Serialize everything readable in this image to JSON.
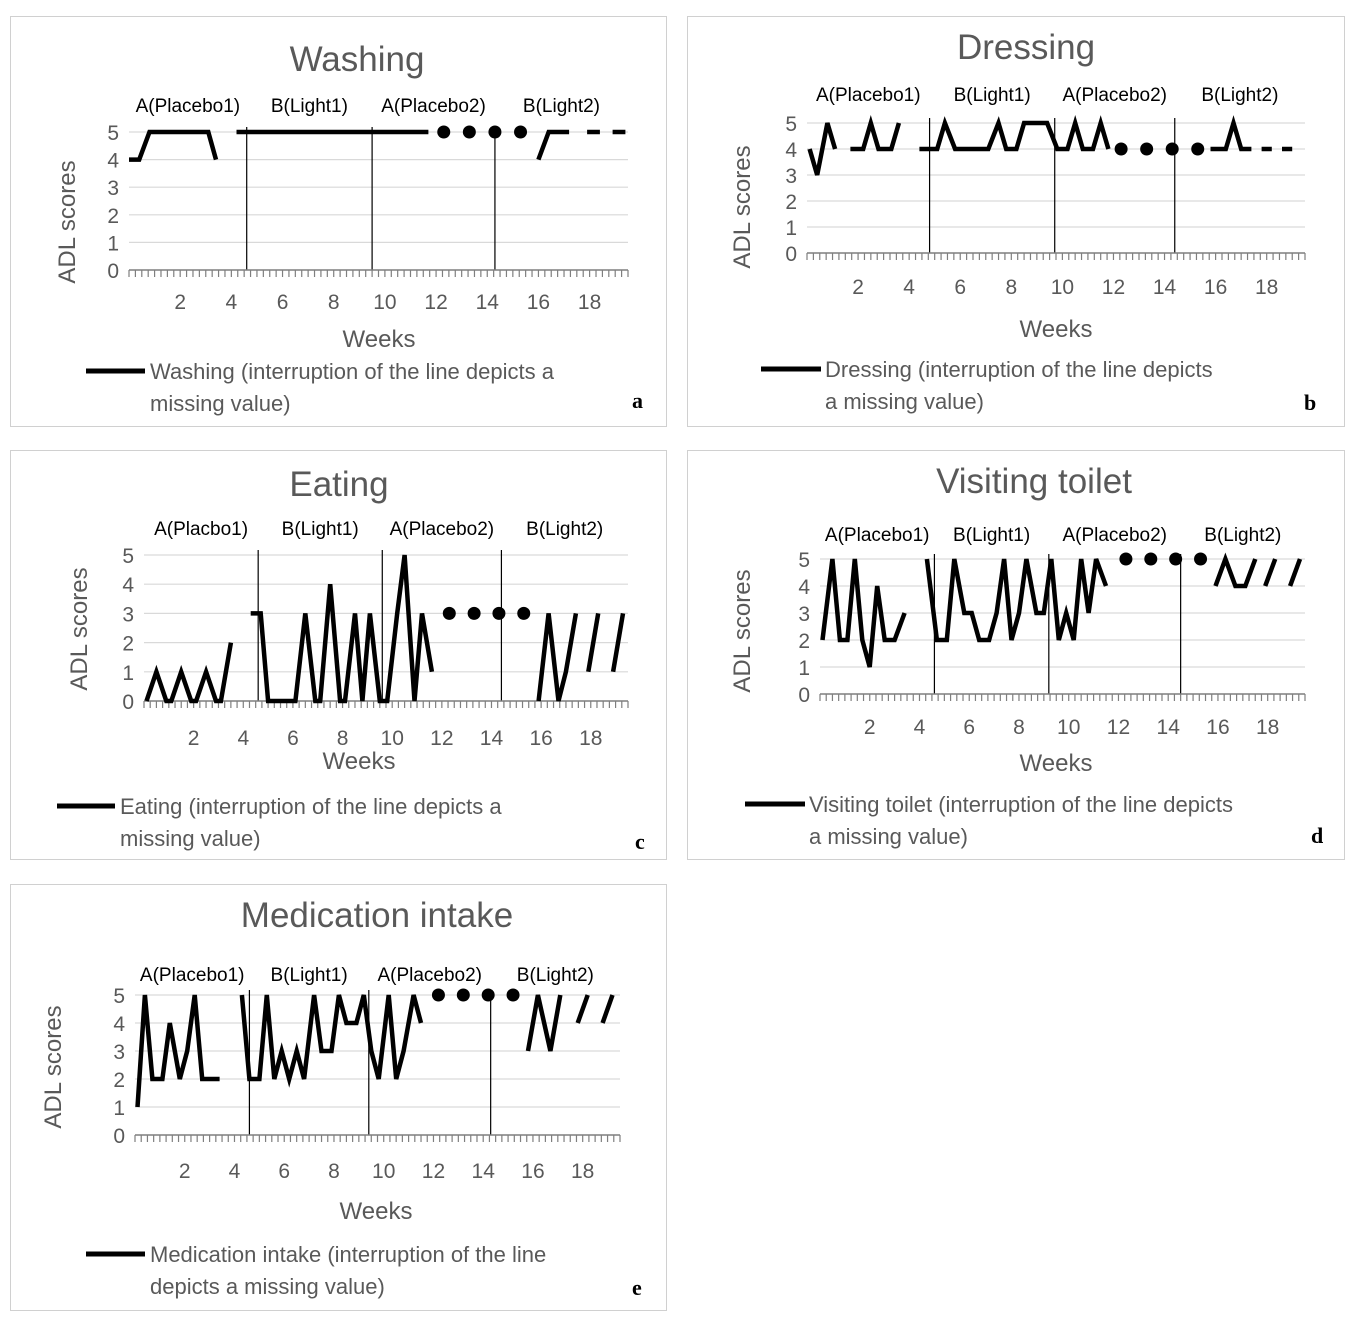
{
  "chart_data": [
    {
      "id": "a",
      "type": "line",
      "title": "Washing",
      "xlabel": "Weeks",
      "ylabel": "ADL scores",
      "xlim": [
        0,
        19.5
      ],
      "ylim": [
        0,
        5
      ],
      "xticks": [
        2,
        4,
        6,
        8,
        10,
        12,
        14,
        16,
        18
      ],
      "yticks": [
        0,
        1,
        2,
        3,
        4,
        5
      ],
      "phases": [
        "A(Placebo1)",
        "B(Light1)",
        "A(Placebo2)",
        "B(Light2)"
      ],
      "phase_boundaries": [
        4.6,
        9.5,
        14.3
      ],
      "series": [
        {
          "name": "Washing",
          "points": [
            [
              0,
              4
            ],
            [
              0.4,
              4
            ],
            [
              0.8,
              5
            ],
            [
              3.1,
              5
            ],
            [
              3.4,
              4
            ]
          ]
        },
        {
          "name": "Washing",
          "points": [
            [
              4.2,
              5
            ],
            [
              11.7,
              5
            ]
          ]
        },
        {
          "name": "Washing",
          "points": [
            [
              16.0,
              4
            ],
            [
              16.4,
              5
            ],
            [
              17.2,
              5
            ]
          ]
        },
        {
          "name": "Washing",
          "points": [
            [
              17.9,
              5
            ],
            [
              18.4,
              5
            ]
          ]
        },
        {
          "name": "Washing",
          "points": [
            [
              18.9,
              5
            ],
            [
              19.4,
              5
            ]
          ]
        }
      ],
      "dots": [
        [
          12.3,
          5
        ],
        [
          13.3,
          5
        ],
        [
          14.3,
          5
        ],
        [
          15.3,
          5
        ]
      ],
      "legend": "Washing (interruption of the line depicts a missing value)",
      "panel_letter": "a"
    },
    {
      "id": "b",
      "type": "line",
      "title": "Dressing",
      "xlabel": "Weeks",
      "ylabel": "ADL scores",
      "xlim": [
        0,
        19.5
      ],
      "ylim": [
        0,
        5
      ],
      "xticks": [
        2,
        4,
        6,
        8,
        10,
        12,
        14,
        16,
        18
      ],
      "yticks": [
        0,
        1,
        2,
        3,
        4,
        5
      ],
      "phases": [
        "A(Placebo1)",
        "B(Light1)",
        "A(Placebo2)",
        "B(Light2)"
      ],
      "phase_boundaries": [
        4.8,
        9.7,
        14.4
      ],
      "series": [
        {
          "name": "Dressing",
          "points": [
            [
              0.1,
              4
            ],
            [
              0.4,
              3
            ],
            [
              0.8,
              5
            ],
            [
              1.1,
              4
            ]
          ]
        },
        {
          "name": "Dressing",
          "points": [
            [
              1.7,
              4
            ],
            [
              2.2,
              4
            ],
            [
              2.5,
              5
            ],
            [
              2.8,
              4
            ],
            [
              3.3,
              4
            ],
            [
              3.6,
              5
            ]
          ]
        },
        {
          "name": "Dressing",
          "points": [
            [
              4.4,
              4
            ],
            [
              5.1,
              4
            ],
            [
              5.4,
              5
            ],
            [
              5.8,
              4
            ],
            [
              7.1,
              4
            ],
            [
              7.5,
              5
            ],
            [
              7.8,
              4
            ],
            [
              8.2,
              4
            ],
            [
              8.5,
              5
            ],
            [
              9.4,
              5
            ],
            [
              9.8,
              4
            ],
            [
              10.2,
              4
            ],
            [
              10.5,
              5
            ],
            [
              10.8,
              4
            ],
            [
              11.2,
              4
            ],
            [
              11.5,
              5
            ],
            [
              11.8,
              4
            ]
          ]
        },
        {
          "name": "Dressing",
          "points": [
            [
              15.8,
              4
            ],
            [
              16.4,
              4
            ],
            [
              16.7,
              5
            ],
            [
              17.0,
              4
            ],
            [
              17.4,
              4
            ]
          ]
        },
        {
          "name": "Dressing",
          "points": [
            [
              17.8,
              4
            ],
            [
              18.2,
              4
            ]
          ]
        },
        {
          "name": "Dressing",
          "points": [
            [
              18.6,
              4
            ],
            [
              19.0,
              4
            ]
          ]
        }
      ],
      "dots": [
        [
          12.3,
          4
        ],
        [
          13.3,
          4
        ],
        [
          14.3,
          4
        ],
        [
          15.3,
          4
        ]
      ],
      "legend": "Dressing (interruption of the line depicts a missing value)",
      "panel_letter": "b"
    },
    {
      "id": "c",
      "type": "line",
      "title": "Eating",
      "xlabel": "Weeks",
      "ylabel": "ADL scores",
      "xlim": [
        0,
        19.5
      ],
      "ylim": [
        0,
        5
      ],
      "xticks": [
        2,
        4,
        6,
        8,
        10,
        12,
        14,
        16,
        18
      ],
      "yticks": [
        0,
        1,
        2,
        3,
        4,
        5
      ],
      "phases": [
        "A(Placbo1)",
        "B(Light1)",
        "A(Placebo2)",
        "B(Light2)"
      ],
      "phase_boundaries": [
        4.6,
        9.6,
        14.4
      ],
      "series": [
        {
          "name": "Eating",
          "points": [
            [
              0.1,
              0
            ],
            [
              0.5,
              1
            ],
            [
              0.9,
              0
            ],
            [
              1.1,
              0
            ],
            [
              1.5,
              1
            ],
            [
              1.9,
              0
            ],
            [
              2.1,
              0
            ],
            [
              2.5,
              1
            ],
            [
              2.9,
              0
            ],
            [
              3.1,
              0
            ],
            [
              3.5,
              2
            ]
          ]
        },
        {
          "name": "Eating",
          "points": [
            [
              4.3,
              3
            ],
            [
              4.7,
              3
            ],
            [
              5.0,
              0
            ],
            [
              6.1,
              0
            ],
            [
              6.5,
              3
            ],
            [
              6.9,
              0
            ],
            [
              7.1,
              0
            ],
            [
              7.5,
              4
            ],
            [
              7.9,
              0
            ],
            [
              8.1,
              0
            ],
            [
              8.5,
              3
            ],
            [
              8.8,
              0
            ],
            [
              9.1,
              3
            ],
            [
              9.5,
              0
            ],
            [
              9.8,
              0
            ],
            [
              10.2,
              3
            ],
            [
              10.5,
              5
            ],
            [
              10.9,
              0
            ],
            [
              11.2,
              3
            ],
            [
              11.6,
              1
            ]
          ]
        },
        {
          "name": "Eating",
          "points": [
            [
              15.9,
              0
            ],
            [
              16.3,
              3
            ],
            [
              16.7,
              0
            ],
            [
              17.0,
              1
            ],
            [
              17.4,
              3
            ]
          ]
        },
        {
          "name": "Eating",
          "points": [
            [
              17.9,
              1
            ],
            [
              18.3,
              3
            ]
          ]
        },
        {
          "name": "Eating",
          "points": [
            [
              18.9,
              1
            ],
            [
              19.3,
              3
            ]
          ]
        }
      ],
      "dots": [
        [
          12.3,
          3
        ],
        [
          13.3,
          3
        ],
        [
          14.3,
          3
        ],
        [
          15.3,
          3
        ]
      ],
      "legend": "Eating (interruption of the line depicts a missing value)",
      "panel_letter": "c"
    },
    {
      "id": "d",
      "type": "line",
      "title": "Visiting toilet",
      "xlabel": "Weeks",
      "ylabel": "ADL scores",
      "xlim": [
        0,
        19.5
      ],
      "ylim": [
        0,
        5
      ],
      "xticks": [
        2,
        4,
        6,
        8,
        10,
        12,
        14,
        16,
        18
      ],
      "yticks": [
        0,
        1,
        2,
        3,
        4,
        5
      ],
      "phases": [
        "A(Placebo1)",
        "B(Light1)",
        "A(Placebo2)",
        "B(Light2)"
      ],
      "phase_boundaries": [
        4.6,
        9.2,
        14.5
      ],
      "series": [
        {
          "name": "Visiting toilet",
          "points": [
            [
              0.1,
              2
            ],
            [
              0.5,
              5
            ],
            [
              0.8,
              2
            ],
            [
              1.1,
              2
            ],
            [
              1.4,
              5
            ],
            [
              1.7,
              2
            ],
            [
              2.0,
              1
            ],
            [
              2.3,
              4
            ],
            [
              2.6,
              2
            ],
            [
              3.0,
              2
            ],
            [
              3.4,
              3
            ]
          ]
        },
        {
          "name": "Visiting toilet",
          "points": [
            [
              4.3,
              5
            ],
            [
              4.7,
              2
            ],
            [
              5.1,
              2
            ],
            [
              5.4,
              5
            ],
            [
              5.8,
              3
            ],
            [
              6.1,
              3
            ],
            [
              6.4,
              2
            ],
            [
              6.8,
              2
            ],
            [
              7.1,
              3
            ],
            [
              7.4,
              5
            ],
            [
              7.7,
              2
            ],
            [
              8.0,
              3
            ],
            [
              8.3,
              5
            ],
            [
              8.7,
              3
            ],
            [
              9.0,
              3
            ],
            [
              9.3,
              5
            ],
            [
              9.6,
              2
            ],
            [
              9.9,
              3
            ],
            [
              10.2,
              2
            ],
            [
              10.5,
              5
            ],
            [
              10.8,
              3
            ],
            [
              11.1,
              5
            ],
            [
              11.5,
              4
            ]
          ]
        },
        {
          "name": "Visiting toilet",
          "points": [
            [
              15.9,
              4
            ],
            [
              16.3,
              5
            ],
            [
              16.7,
              4
            ],
            [
              17.1,
              4
            ],
            [
              17.5,
              5
            ]
          ]
        },
        {
          "name": "Visiting toilet",
          "points": [
            [
              17.9,
              4
            ],
            [
              18.3,
              5
            ]
          ]
        },
        {
          "name": "Visiting toilet",
          "points": [
            [
              18.9,
              4
            ],
            [
              19.3,
              5
            ]
          ]
        }
      ],
      "dots": [
        [
          12.3,
          5
        ],
        [
          13.3,
          5
        ],
        [
          14.3,
          5
        ],
        [
          15.3,
          5
        ]
      ],
      "legend": "Visiting toilet (interruption of the line depicts a missing value)",
      "panel_letter": "d"
    },
    {
      "id": "e",
      "type": "line",
      "title": "Medication intake",
      "xlabel": "Weeks",
      "ylabel": "ADL scores",
      "xlim": [
        0,
        19.5
      ],
      "ylim": [
        0,
        5
      ],
      "xticks": [
        2,
        4,
        6,
        8,
        10,
        12,
        14,
        16,
        18
      ],
      "yticks": [
        0,
        1,
        2,
        3,
        4,
        5
      ],
      "phases": [
        "A(Placebo1)",
        "B(Light1)",
        "A(Placebo2)",
        "B(Light2)"
      ],
      "phase_boundaries": [
        4.6,
        9.4,
        14.3
      ],
      "series": [
        {
          "name": "Medication intake",
          "points": [
            [
              0.1,
              1
            ],
            [
              0.4,
              5
            ],
            [
              0.7,
              2
            ],
            [
              1.1,
              2
            ],
            [
              1.4,
              4
            ],
            [
              1.8,
              2
            ],
            [
              2.1,
              3
            ],
            [
              2.4,
              5
            ],
            [
              2.7,
              2
            ],
            [
              3.4,
              2
            ]
          ]
        },
        {
          "name": "Medication intake",
          "points": [
            [
              4.3,
              5
            ],
            [
              4.6,
              2
            ],
            [
              5.0,
              2
            ],
            [
              5.3,
              5
            ],
            [
              5.6,
              2
            ],
            [
              5.9,
              3
            ],
            [
              6.2,
              2
            ],
            [
              6.5,
              3
            ],
            [
              6.8,
              2
            ],
            [
              7.2,
              5
            ],
            [
              7.5,
              3
            ],
            [
              7.9,
              3
            ],
            [
              8.2,
              5
            ],
            [
              8.5,
              4
            ],
            [
              8.9,
              4
            ],
            [
              9.2,
              5
            ],
            [
              9.5,
              3
            ],
            [
              9.8,
              2
            ],
            [
              10.2,
              5
            ],
            [
              10.5,
              2
            ],
            [
              10.8,
              3
            ],
            [
              11.2,
              5
            ],
            [
              11.5,
              4
            ]
          ]
        },
        {
          "name": "Medication intake",
          "points": [
            [
              15.8,
              3
            ],
            [
              16.2,
              5
            ],
            [
              16.7,
              3
            ],
            [
              17.1,
              5
            ]
          ]
        },
        {
          "name": "Medication intake",
          "points": [
            [
              17.8,
              4
            ],
            [
              18.2,
              5
            ]
          ]
        },
        {
          "name": "Medication intake",
          "points": [
            [
              18.8,
              4
            ],
            [
              19.2,
              5
            ]
          ]
        }
      ],
      "dots": [
        [
          12.2,
          5
        ],
        [
          13.2,
          5
        ],
        [
          14.2,
          5
        ],
        [
          15.2,
          5
        ]
      ],
      "legend": "Medication intake (interruption of the line depicts a missing value)",
      "panel_letter": "e"
    }
  ]
}
